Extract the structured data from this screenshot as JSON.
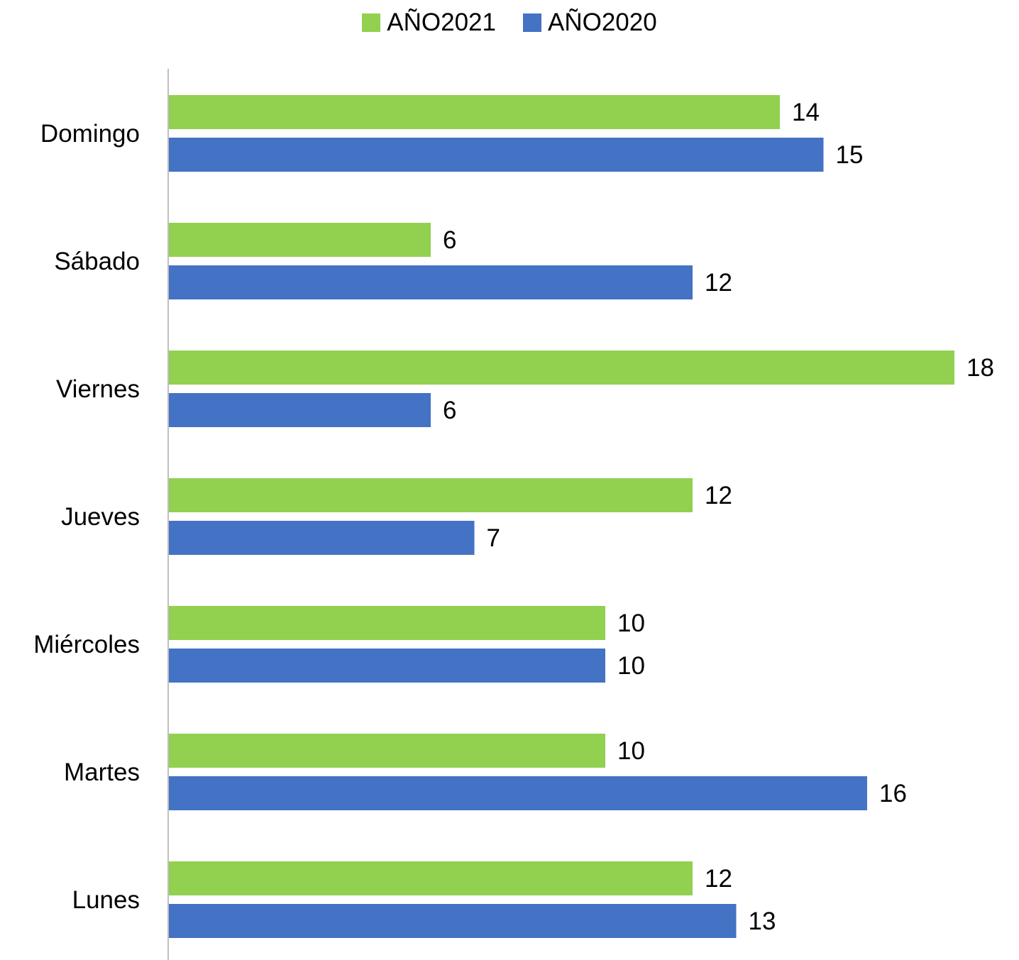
{
  "chart_data": {
    "type": "bar",
    "orientation": "horizontal",
    "categories": [
      "Domingo",
      "Sábado",
      "Viernes",
      "Jueves",
      "Miércoles",
      "Martes",
      "Lunes"
    ],
    "series": [
      {
        "name": "AÑO2021",
        "color": "#92d050",
        "values": [
          14,
          6,
          18,
          12,
          10,
          10,
          12
        ]
      },
      {
        "name": "AÑO2020",
        "color": "#4472c4",
        "values": [
          15,
          12,
          6,
          7,
          10,
          16,
          13
        ]
      }
    ],
    "title": "",
    "xlabel": "",
    "ylabel": "",
    "xlim": [
      0,
      18
    ],
    "grid": false,
    "legend_position": "top",
    "data_labels": true
  }
}
